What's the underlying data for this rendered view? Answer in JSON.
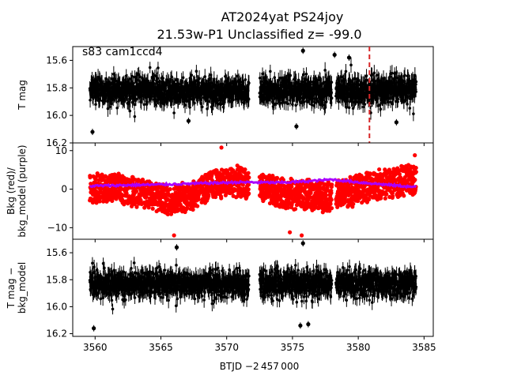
{
  "chart_data": {
    "type": "scatter",
    "title_line1": "AT2024yat  PS24joy",
    "title_line2": "21.53w-P1 Unclassified z= -99.0",
    "annotation": "s83 cam1ccd4",
    "xlabel": "BTJD −2 457 000",
    "xlim": [
      3558.3,
      3585.7
    ],
    "x_ticks": [
      3560,
      3565,
      3570,
      3575,
      3580,
      3585
    ],
    "x_tick_labels": [
      "3560",
      "3565",
      "3570",
      "3575",
      "3580",
      "3585"
    ],
    "event_marker": {
      "x": 3580.85,
      "color": "#d62728",
      "style": "dashed"
    },
    "colors": {
      "points": "#000000",
      "bkg": "#ff0000",
      "bkg_model": "#aa00ff",
      "marker": "#d62728"
    },
    "panels": [
      {
        "name": "tmag",
        "ylabel": "T mag",
        "ylim": [
          16.2,
          15.5
        ],
        "inverted": true,
        "y_ticks": [
          15.6,
          15.8,
          16.0,
          16.2
        ],
        "y_tick_labels": [
          "15.6",
          "15.8",
          "16.0",
          "16.2"
        ],
        "series": [
          {
            "kind": "errorbar",
            "x_range": [
              3559.6,
              3584.4
            ],
            "gaps": [
              [
                3571.7,
                3572.5
              ],
              [
                3578.0,
                3578.3
              ]
            ],
            "center": 15.82,
            "spread": 0.09,
            "errbar": 0.05,
            "color": "#000000"
          }
        ],
        "outliers": [
          {
            "x": 3575.8,
            "y": 15.53
          },
          {
            "x": 3578.2,
            "y": 15.56
          },
          {
            "x": 3579.3,
            "y": 15.58
          },
          {
            "x": 3559.8,
            "y": 16.12
          },
          {
            "x": 3567.1,
            "y": 16.04
          },
          {
            "x": 3575.3,
            "y": 16.08
          },
          {
            "x": 3582.9,
            "y": 16.05
          }
        ]
      },
      {
        "name": "bkg",
        "ylabel": "Bkg (red)/\nbkg_model (purple)",
        "ylim": [
          -13,
          12
        ],
        "inverted": false,
        "y_ticks": [
          -10,
          0,
          10
        ],
        "y_tick_labels": [
          "−10",
          "0",
          "10"
        ],
        "series": [
          {
            "kind": "scatter",
            "name": "Bkg",
            "x_range": [
              3559.6,
              3584.4
            ],
            "gaps": [
              [
                3571.7,
                3572.5
              ],
              [
                3578.0,
                3578.3
              ]
            ],
            "color": "#ff0000",
            "envelope_x": [
              3559.6,
              3562,
              3564,
              3565.5,
              3567.5,
              3569,
              3571,
              3572.5,
              3574,
              3576,
              3578,
              3580,
              3582,
              3584.4
            ],
            "envelope_center": [
              0.5,
              0.0,
              -1.0,
              -3.0,
              -1.5,
              1.5,
              2.0,
              0.5,
              -1.0,
              -1.5,
              -2.0,
              0.0,
              1.5,
              2.5
            ],
            "spread": 4.2
          },
          {
            "kind": "line",
            "name": "bkg_model",
            "color": "#aa00ff",
            "x": [
              3559.6,
              3562,
              3565,
              3568,
              3571,
              3574,
              3576,
              3578,
              3580,
              3582,
              3584.4
            ],
            "y": [
              0.8,
              1.0,
              1.2,
              1.5,
              1.8,
              1.7,
              2.0,
              2.5,
              1.8,
              1.2,
              0.5
            ]
          }
        ],
        "outliers": [
          {
            "x": 3569.6,
            "y": 10.8
          },
          {
            "x": 3566.0,
            "y": -12.0
          },
          {
            "x": 3575.7,
            "y": -12.0
          },
          {
            "x": 3574.8,
            "y": -11.2
          },
          {
            "x": 3584.3,
            "y": 8.8
          }
        ]
      },
      {
        "name": "tmag_corr",
        "ylabel": "T mag −\nbkg_model",
        "ylim": [
          16.22,
          15.5
        ],
        "inverted": true,
        "y_ticks": [
          15.6,
          15.8,
          16.0,
          16.2
        ],
        "y_tick_labels": [
          "15.6",
          "15.8",
          "16.0",
          "16.2"
        ],
        "series": [
          {
            "kind": "errorbar",
            "x_range": [
              3559.6,
              3584.4
            ],
            "gaps": [
              [
                3571.7,
                3572.5
              ],
              [
                3578.0,
                3578.3
              ]
            ],
            "center": 15.83,
            "spread": 0.09,
            "errbar": 0.05,
            "color": "#000000"
          }
        ],
        "outliers": [
          {
            "x": 3575.8,
            "y": 15.53
          },
          {
            "x": 3566.2,
            "y": 15.56
          },
          {
            "x": 3559.9,
            "y": 16.16
          },
          {
            "x": 3575.6,
            "y": 16.14
          },
          {
            "x": 3576.2,
            "y": 16.13
          }
        ]
      }
    ]
  }
}
